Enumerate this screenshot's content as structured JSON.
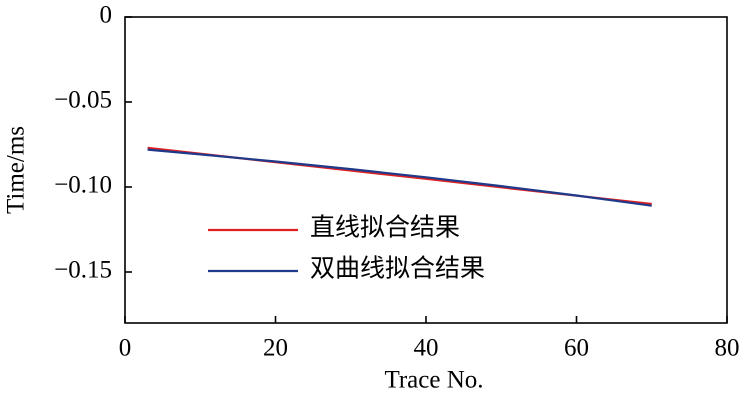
{
  "chart_data": {
    "type": "line",
    "x_label": "Trace No.",
    "y_label": "Time/ms",
    "x": [
      3,
      10,
      20,
      30,
      40,
      50,
      60,
      70
    ],
    "series": [
      {
        "name": "直线拟合结果",
        "color": "#e02020",
        "values": [
          -0.077,
          -0.0804,
          -0.0854,
          -0.0903,
          -0.0952,
          -0.1002,
          -0.1051,
          -0.11
        ]
      },
      {
        "name": "双曲线拟合结果",
        "color": "#1f3a8a",
        "values": [
          -0.078,
          -0.0808,
          -0.085,
          -0.0895,
          -0.0943,
          -0.0995,
          -0.105,
          -0.111
        ]
      }
    ],
    "xlim": [
      0,
      80
    ],
    "xticks": [
      0,
      20,
      40,
      60,
      80
    ],
    "ylim": [
      -0.18,
      0
    ],
    "yticks": [
      0,
      {
        "value": -0.05,
        "label": "−0.05"
      },
      {
        "value": -0.1,
        "label": "−0.10"
      },
      {
        "value": -0.15,
        "label": "−0.15"
      }
    ],
    "grid": false,
    "legend": "left"
  }
}
